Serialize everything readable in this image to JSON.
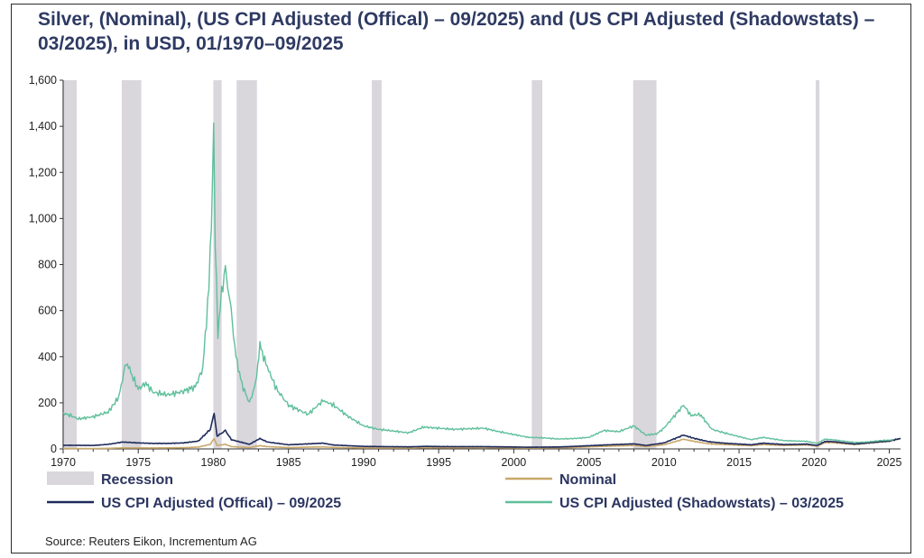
{
  "chart_data": {
    "type": "line",
    "title": "Silver, (Nominal), (US CPI Adjusted (Offical) – 09/2025) and (US CPI Adjusted (Shadowstats) – 03/2025), in USD, 01/1970–09/2025",
    "xlabel": "",
    "ylabel": "",
    "xlim": [
      1970,
      2025.75
    ],
    "ylim": [
      0,
      1600
    ],
    "x_ticks": [
      "1970",
      "1975",
      "1980",
      "1985",
      "1990",
      "1995",
      "2000",
      "2005",
      "2010",
      "2015",
      "2020",
      "2025"
    ],
    "y_ticks": [
      "0",
      "200",
      "400",
      "600",
      "800",
      "1,000",
      "1,200",
      "1,400",
      "1,600"
    ],
    "recessions": [
      [
        1969.95,
        1970.9
      ],
      [
        1973.9,
        1975.2
      ],
      [
        1980.0,
        1980.55
      ],
      [
        1981.55,
        1982.9
      ],
      [
        1990.55,
        1991.2
      ],
      [
        2001.2,
        2001.9
      ],
      [
        2007.95,
        2009.5
      ],
      [
        2020.1,
        2020.35
      ]
    ],
    "series": [
      {
        "name": "Nominal",
        "color": "#c9a86a",
        "points": [
          [
            1970,
            1.8
          ],
          [
            1972,
            1.7
          ],
          [
            1973,
            2.6
          ],
          [
            1974,
            4.5
          ],
          [
            1975,
            4.4
          ],
          [
            1976,
            4.3
          ],
          [
            1977,
            4.6
          ],
          [
            1978,
            5.4
          ],
          [
            1979,
            8
          ],
          [
            1979.8,
            20
          ],
          [
            1980.05,
            45
          ],
          [
            1980.25,
            15
          ],
          [
            1980.8,
            20
          ],
          [
            1981.2,
            10
          ],
          [
            1982.4,
            6
          ],
          [
            1983.1,
            14
          ],
          [
            1983.6,
            10
          ],
          [
            1985,
            6
          ],
          [
            1987.3,
            9
          ],
          [
            1988,
            6.5
          ],
          [
            1990,
            4.5
          ],
          [
            1993,
            4
          ],
          [
            1994,
            5.3
          ],
          [
            1996,
            5
          ],
          [
            1998,
            5.5
          ],
          [
            2001,
            4.3
          ],
          [
            2003,
            4.9
          ],
          [
            2004,
            6.7
          ],
          [
            2006,
            11.5
          ],
          [
            2008,
            15
          ],
          [
            2008.8,
            10
          ],
          [
            2010,
            18
          ],
          [
            2011.3,
            42
          ],
          [
            2012,
            33
          ],
          [
            2013,
            22
          ],
          [
            2014,
            19
          ],
          [
            2015.8,
            14
          ],
          [
            2016.6,
            19
          ],
          [
            2018,
            15
          ],
          [
            2019.5,
            17
          ],
          [
            2020.2,
            12
          ],
          [
            2020.7,
            27
          ],
          [
            2021.2,
            27
          ],
          [
            2022.7,
            19
          ],
          [
            2023.5,
            24
          ],
          [
            2024.4,
            30
          ],
          [
            2025,
            33
          ],
          [
            2025.75,
            45
          ]
        ]
      },
      {
        "name": "US CPI Adjusted (Offical) – 09/2025",
        "color": "#1f2a5c",
        "points": [
          [
            1970,
            16
          ],
          [
            1972,
            15
          ],
          [
            1973,
            20
          ],
          [
            1974,
            30
          ],
          [
            1975,
            26
          ],
          [
            1976,
            24
          ],
          [
            1977,
            24
          ],
          [
            1978,
            26
          ],
          [
            1979,
            34
          ],
          [
            1979.8,
            85
          ],
          [
            1980.05,
            155
          ],
          [
            1980.25,
            55
          ],
          [
            1980.8,
            80
          ],
          [
            1981.2,
            40
          ],
          [
            1982.4,
            20
          ],
          [
            1983.1,
            45
          ],
          [
            1983.6,
            30
          ],
          [
            1985,
            18
          ],
          [
            1987.3,
            25
          ],
          [
            1988,
            17
          ],
          [
            1990,
            11
          ],
          [
            1993,
            9
          ],
          [
            1994,
            11
          ],
          [
            1996,
            10
          ],
          [
            1998,
            10
          ],
          [
            2001,
            7.5
          ],
          [
            2003,
            8.5
          ],
          [
            2004,
            11
          ],
          [
            2006,
            17
          ],
          [
            2008,
            22
          ],
          [
            2008.8,
            15
          ],
          [
            2010,
            26
          ],
          [
            2011.3,
            60
          ],
          [
            2012,
            46
          ],
          [
            2013,
            31
          ],
          [
            2014,
            25
          ],
          [
            2015.8,
            18
          ],
          [
            2016.6,
            25
          ],
          [
            2018,
            19
          ],
          [
            2019.5,
            21
          ],
          [
            2020.2,
            15
          ],
          [
            2020.7,
            32
          ],
          [
            2021.2,
            32
          ],
          [
            2022.7,
            21
          ],
          [
            2023.5,
            26
          ],
          [
            2024.4,
            31
          ],
          [
            2025,
            34
          ],
          [
            2025.75,
            46
          ]
        ]
      },
      {
        "name": "US CPI Adjusted (Shadowstats) – 03/2025",
        "color": "#5fbf9b",
        "points": [
          [
            1970,
            155
          ],
          [
            1970.5,
            145
          ],
          [
            1971,
            130
          ],
          [
            1972,
            140
          ],
          [
            1973,
            160
          ],
          [
            1973.7,
            225
          ],
          [
            1974.2,
            380
          ],
          [
            1974.5,
            330
          ],
          [
            1975,
            260
          ],
          [
            1975.5,
            285
          ],
          [
            1976,
            245
          ],
          [
            1977,
            235
          ],
          [
            1978,
            250
          ],
          [
            1978.8,
            270
          ],
          [
            1979.3,
            350
          ],
          [
            1979.7,
            700
          ],
          [
            1979.95,
            1150
          ],
          [
            1980.02,
            1420
          ],
          [
            1980.12,
            900
          ],
          [
            1980.3,
            500
          ],
          [
            1980.55,
            680
          ],
          [
            1980.8,
            780
          ],
          [
            1981.1,
            650
          ],
          [
            1981.5,
            400
          ],
          [
            1981.9,
            280
          ],
          [
            1982.4,
            200
          ],
          [
            1982.8,
            280
          ],
          [
            1983.1,
            450
          ],
          [
            1983.5,
            370
          ],
          [
            1984.2,
            260
          ],
          [
            1985,
            190
          ],
          [
            1986.3,
            150
          ],
          [
            1987.3,
            210
          ],
          [
            1988,
            190
          ],
          [
            1989,
            140
          ],
          [
            1990,
            100
          ],
          [
            1991,
            85
          ],
          [
            1993,
            70
          ],
          [
            1994,
            95
          ],
          [
            1996,
            85
          ],
          [
            1998,
            90
          ],
          [
            1999,
            75
          ],
          [
            2001,
            50
          ],
          [
            2002,
            48
          ],
          [
            2003,
            43
          ],
          [
            2004,
            45
          ],
          [
            2005,
            50
          ],
          [
            2006,
            80
          ],
          [
            2007,
            75
          ],
          [
            2008,
            100
          ],
          [
            2008.8,
            60
          ],
          [
            2009.5,
            65
          ],
          [
            2010,
            90
          ],
          [
            2011.3,
            190
          ],
          [
            2011.8,
            145
          ],
          [
            2012.4,
            150
          ],
          [
            2013.2,
            85
          ],
          [
            2014,
            70
          ],
          [
            2015.8,
            40
          ],
          [
            2016.6,
            50
          ],
          [
            2018,
            36
          ],
          [
            2019.5,
            33
          ],
          [
            2020.2,
            24
          ],
          [
            2020.7,
            42
          ],
          [
            2021.2,
            40
          ],
          [
            2022.7,
            28
          ],
          [
            2023.5,
            30
          ],
          [
            2024.4,
            36
          ],
          [
            2025,
            38
          ],
          [
            2025.25,
            40
          ]
        ]
      }
    ],
    "legend": [
      {
        "label": "Recession",
        "kind": "box",
        "color": "#d9d6dc"
      },
      {
        "label": "Nominal",
        "kind": "line",
        "color": "#c9a86a"
      },
      {
        "label": "US CPI Adjusted (Offical) – 09/2025",
        "kind": "line",
        "color": "#1f2a5c"
      },
      {
        "label": "US CPI Adjusted (Shadowstats) – 03/2025",
        "kind": "line",
        "color": "#5fbf9b"
      }
    ],
    "source": "Source: Reuters Eikon, Incrementum AG"
  }
}
